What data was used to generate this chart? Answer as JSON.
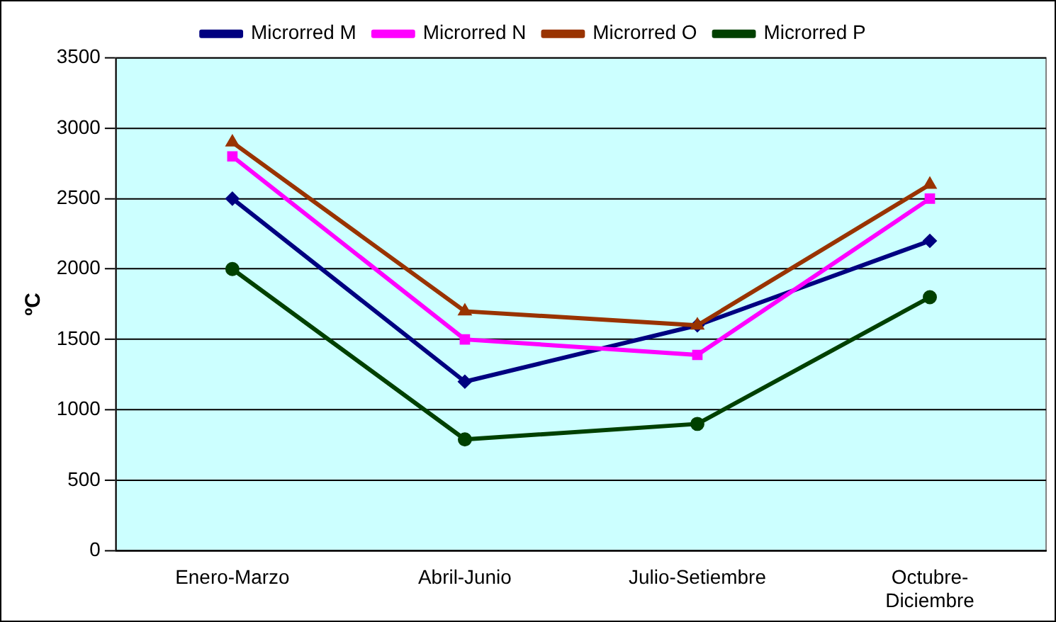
{
  "chart_data": {
    "type": "line",
    "ylabel": "ºC",
    "categories": [
      "Enero-Marzo",
      "Abril-Junio",
      "Julio-Setiembre",
      "Octubre-Diciembre"
    ],
    "series": [
      {
        "name": "Microrred M",
        "color": "#000080",
        "marker": "diamond",
        "values": [
          2500,
          1200,
          1600,
          2200
        ]
      },
      {
        "name": "Microrred N",
        "color": "#ff00ff",
        "marker": "square",
        "values": [
          2800,
          1500,
          1390,
          2500
        ]
      },
      {
        "name": "Microrred O",
        "color": "#993300",
        "marker": "triangle",
        "values": [
          2900,
          1700,
          1600,
          2600
        ]
      },
      {
        "name": "Microrred P",
        "color": "#004000",
        "marker": "circle",
        "values": [
          2000,
          790,
          900,
          1800
        ]
      }
    ],
    "ylim": [
      0,
      3500
    ],
    "yticks": [
      0,
      500,
      1000,
      1500,
      2000,
      2500,
      3000,
      3500
    ],
    "grid": "y",
    "legend": "top",
    "line_style": "solid"
  }
}
